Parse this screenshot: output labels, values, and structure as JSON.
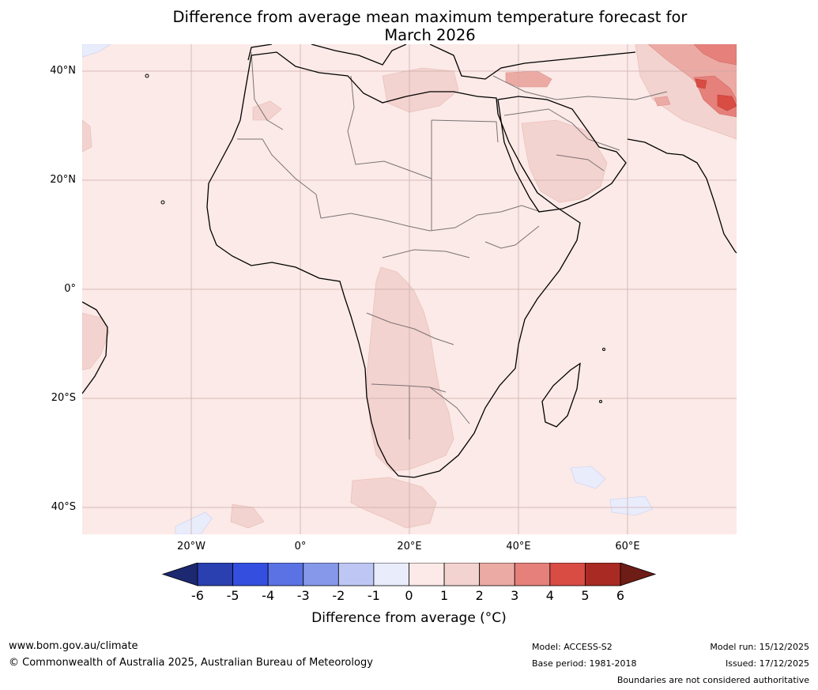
{
  "title": {
    "line1": "Difference from average mean maximum temperature forecast for",
    "line2": "March 2026"
  },
  "map": {
    "region": "Africa and Middle East",
    "lat_labels": [
      "40°N",
      "20°N",
      "0°",
      "20°S",
      "40°S"
    ],
    "lon_labels": [
      "20°W",
      "0°",
      "20°E",
      "40°E",
      "60°E"
    ],
    "background_class": "0 to 1",
    "anomaly_areas": [
      {
        "area": "Southern Africa interior",
        "class": "1 to 2"
      },
      {
        "area": "Arabian Peninsula",
        "class": "1 to 2"
      },
      {
        "area": "Turkey / Caspian region",
        "class": "2 to 4"
      },
      {
        "area": "Iran highlands",
        "class": "3 to 5"
      },
      {
        "area": "Atlantic south-east of Brazil",
        "class": "1 to 2"
      },
      {
        "area": "South Indian Ocean patches",
        "class": "-1 to 0"
      }
    ]
  },
  "colorbar": {
    "ticks": [
      "-6",
      "-5",
      "-4",
      "-3",
      "-2",
      "-1",
      "0",
      "1",
      "2",
      "3",
      "4",
      "5",
      "6"
    ],
    "colors": {
      "below": "#1c2870",
      "bins": [
        "#2a3fb0",
        "#344fe0",
        "#5a72e4",
        "#8598ea",
        "#bec7f4",
        "#e9ecfb",
        "#fbeae7",
        "#f3d3cf",
        "#ecaaa4",
        "#e5807a",
        "#d94c44",
        "#a82a22"
      ],
      "above": "#6e1c16"
    },
    "label": "Difference from average (°C)"
  },
  "footer": {
    "website": "www.bom.gov.au/climate",
    "copyright": "© Commonwealth of Australia 2025, Australian Bureau of Meteorology",
    "model": "Model: ACCESS-S2",
    "base_period": "Base period: 1981-2018",
    "model_run": "Model run: 15/12/2025",
    "issued": "Issued: 17/12/2025",
    "disclaimer": "Boundaries are not considered authoritative"
  }
}
